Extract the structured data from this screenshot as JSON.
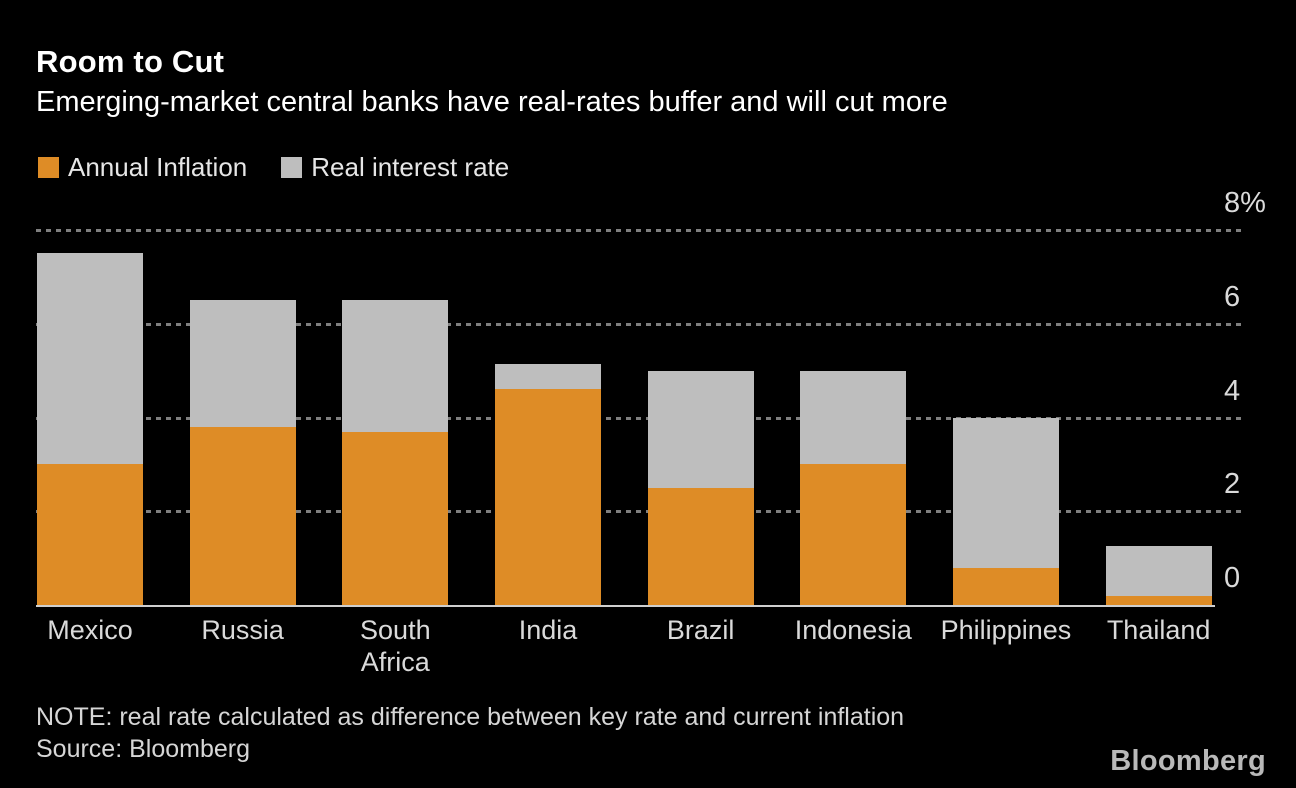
{
  "header": {
    "title": "Room to Cut",
    "subtitle": "Emerging-market central banks have real-rates buffer and will cut more"
  },
  "legend": [
    {
      "label": "Annual Inflation",
      "swatch": "inflation-swatch",
      "color": "#de8c26"
    },
    {
      "label": "Real interest rate",
      "swatch": "real-rate-swatch",
      "color": "#bebebe"
    }
  ],
  "chart_data": {
    "type": "bar",
    "stacked": true,
    "title": "Room to Cut",
    "subtitle": "Emerging-market central banks have real-rates buffer and will cut more",
    "categories": [
      "Mexico",
      "Russia",
      "South\nAfrica",
      "India",
      "Brazil",
      "Indonesia",
      "Philippines",
      "Thailand"
    ],
    "series": [
      {
        "name": "Annual Inflation",
        "color": "#de8c26",
        "values": [
          3.0,
          3.8,
          3.7,
          4.6,
          2.5,
          3.0,
          0.8,
          0.2
        ]
      },
      {
        "name": "Real interest rate",
        "color": "#bebebe",
        "values": [
          4.5,
          2.7,
          2.8,
          0.55,
          2.5,
          2.0,
          3.2,
          1.05
        ]
      }
    ],
    "stack_totals": [
      7.5,
      6.5,
      6.5,
      5.15,
      5.0,
      5.0,
      4.0,
      1.25
    ],
    "ylabel": "",
    "xlabel": "",
    "ylim": [
      0,
      8
    ],
    "yticks": [
      {
        "value": 8,
        "label": "8%"
      },
      {
        "value": 6,
        "label": "6"
      },
      {
        "value": 4,
        "label": "4"
      },
      {
        "value": 2,
        "label": "2"
      },
      {
        "value": 0,
        "label": "0"
      }
    ],
    "grid": "horizontal-dotted",
    "legend_position": "top-left",
    "y_axis_side": "right"
  },
  "footer": {
    "note": "NOTE: real rate calculated as difference between key rate and current inflation",
    "source": "Source: Bloomberg",
    "logo": "Bloomberg"
  },
  "colors": {
    "background": "#000000",
    "inflation": "#de8c26",
    "real_rate": "#bebebe",
    "gridline": "#7f7f7f",
    "baseline": "#cfcfcf",
    "title_text": "#ffffff",
    "axis_text": "#dadada",
    "note_text": "#d6d6d6",
    "logo_text": "#b9b9b9"
  }
}
